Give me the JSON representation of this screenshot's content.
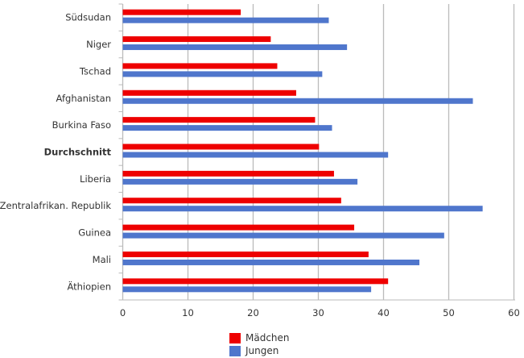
{
  "chart_data": {
    "type": "bar",
    "orientation": "horizontal",
    "categories": [
      "Südsudan",
      "Niger",
      "Tschad",
      "Afghanistan",
      "Burkina Faso",
      "Durchschnitt",
      "Liberia",
      "Zentralafrikan. Republik",
      "Guinea",
      "Mali",
      "Äthiopien"
    ],
    "bold_categories": [
      "Durchschnitt"
    ],
    "series": [
      {
        "name": "Mädchen",
        "color": "#ee0000",
        "values": [
          18.1,
          22.7,
          23.7,
          26.6,
          29.5,
          30.1,
          32.4,
          33.5,
          35.5,
          37.7,
          40.7
        ]
      },
      {
        "name": "Jungen",
        "color": "#4f76cc",
        "values": [
          31.6,
          34.4,
          30.6,
          53.7,
          32.1,
          40.7,
          36.0,
          55.2,
          49.3,
          45.5,
          38.1
        ]
      }
    ],
    "xlim": [
      0,
      60
    ],
    "xticks": [
      "0",
      "10",
      "20",
      "30",
      "40",
      "50",
      "60"
    ],
    "grid": true,
    "legend_position": "bottom"
  }
}
